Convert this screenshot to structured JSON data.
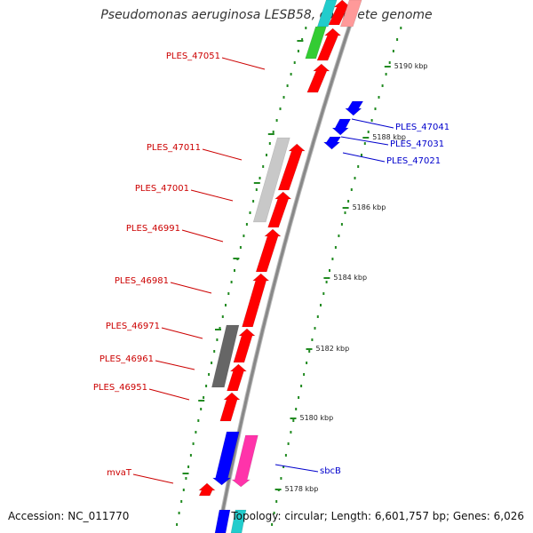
{
  "title": "Pseudomonas aeruginosa LESB58, complete genome",
  "footer": {
    "accession": "Accession: NC_011770",
    "summary": "Topology: circular; Length: 6,601,757 bp; Genes: 6,026"
  },
  "colors": {
    "forward_gene": "#ff0000",
    "reverse_gene": "#0000ff",
    "backbone": "#888888",
    "gc_dots": "#228b22",
    "label_red": "#cc0000",
    "label_blue": "#0000cc"
  },
  "ticks": [
    {
      "label": "5190 kbp"
    },
    {
      "label": "5188 kbp"
    },
    {
      "label": "5186 kbp"
    },
    {
      "label": "5184 kbp"
    },
    {
      "label": "5182 kbp"
    },
    {
      "label": "5180 kbp"
    },
    {
      "label": "5178 kbp"
    }
  ],
  "labels_left": [
    {
      "text": "PLES_47051"
    },
    {
      "text": "PLES_47011"
    },
    {
      "text": "PLES_47001"
    },
    {
      "text": "PLES_46991"
    },
    {
      "text": "PLES_46981"
    },
    {
      "text": "PLES_46971"
    },
    {
      "text": "PLES_46961"
    },
    {
      "text": "PLES_46951"
    },
    {
      "text": "mvaT"
    }
  ],
  "labels_right": [
    {
      "text": "PLES_47041"
    },
    {
      "text": "PLES_47031"
    },
    {
      "text": "PLES_47021"
    },
    {
      "text": "sbcB"
    }
  ]
}
